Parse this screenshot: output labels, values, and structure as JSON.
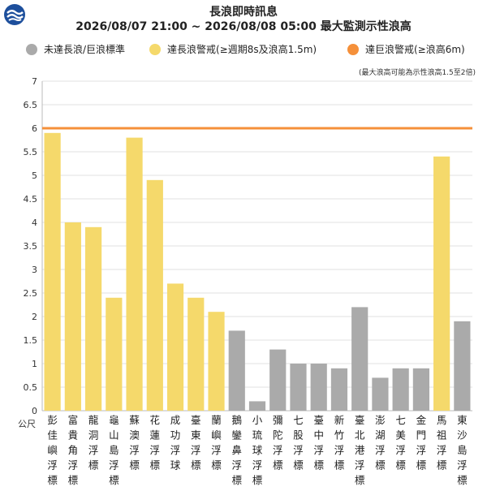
{
  "header": {
    "logo_icon": "cwa-logo-icon",
    "title": "長浪即時訊息",
    "subtitle": "2026/08/07 21:00 ~ 2026/08/08 05:00 最大監測示性浪高"
  },
  "legend": [
    {
      "label": "未達長浪/巨浪標準",
      "color": "#aaaaaa"
    },
    {
      "label": "達長浪警戒(≥週期8s及浪高1.5m)",
      "color": "#f5d96b"
    },
    {
      "label": "達巨浪警戒(≥浪高6m)",
      "color": "#f5903a"
    }
  ],
  "note": "(最大浪高可能為示性浪高1.5至2倍)",
  "chart_data": {
    "type": "bar",
    "ylabel": "公尺",
    "ylim": [
      0,
      7
    ],
    "yticks": [
      "0",
      "0.5",
      "1",
      "1.5",
      "2",
      "2.5",
      "3",
      "3.5",
      "4",
      "4.5",
      "5",
      "5.5",
      "6",
      "6.5",
      "7"
    ],
    "threshold_line": {
      "value": 6,
      "color": "#f5903a"
    },
    "grid": true,
    "categories": [
      "彭佳嶼浮標",
      "富貴角浮標",
      "龍洞浮標",
      "龜山島浮標",
      "蘇澳浮標",
      "花蓮浮標",
      "成功浮球",
      "臺東浮標",
      "蘭嶼浮標",
      "鵝鑾鼻浮標",
      "小琉球浮標",
      "彌陀浮標",
      "七股浮標",
      "臺中浮標",
      "新竹浮標",
      "臺北港浮標",
      "澎湖浮標",
      "七美浮標",
      "金門浮標",
      "馬祖浮標",
      "東沙島浮標"
    ],
    "values": [
      5.9,
      4.0,
      3.9,
      2.4,
      5.8,
      4.9,
      2.7,
      2.4,
      2.1,
      1.7,
      0.2,
      1.3,
      1.0,
      1.0,
      0.9,
      2.2,
      0.7,
      0.9,
      0.9,
      5.4,
      1.9
    ],
    "colors": [
      "#f5d96b",
      "#f5d96b",
      "#f5d96b",
      "#f5d96b",
      "#f5d96b",
      "#f5d96b",
      "#f5d96b",
      "#f5d96b",
      "#f5d96b",
      "#aaaaaa",
      "#aaaaaa",
      "#aaaaaa",
      "#aaaaaa",
      "#aaaaaa",
      "#aaaaaa",
      "#aaaaaa",
      "#aaaaaa",
      "#aaaaaa",
      "#aaaaaa",
      "#f5d96b",
      "#aaaaaa"
    ]
  }
}
